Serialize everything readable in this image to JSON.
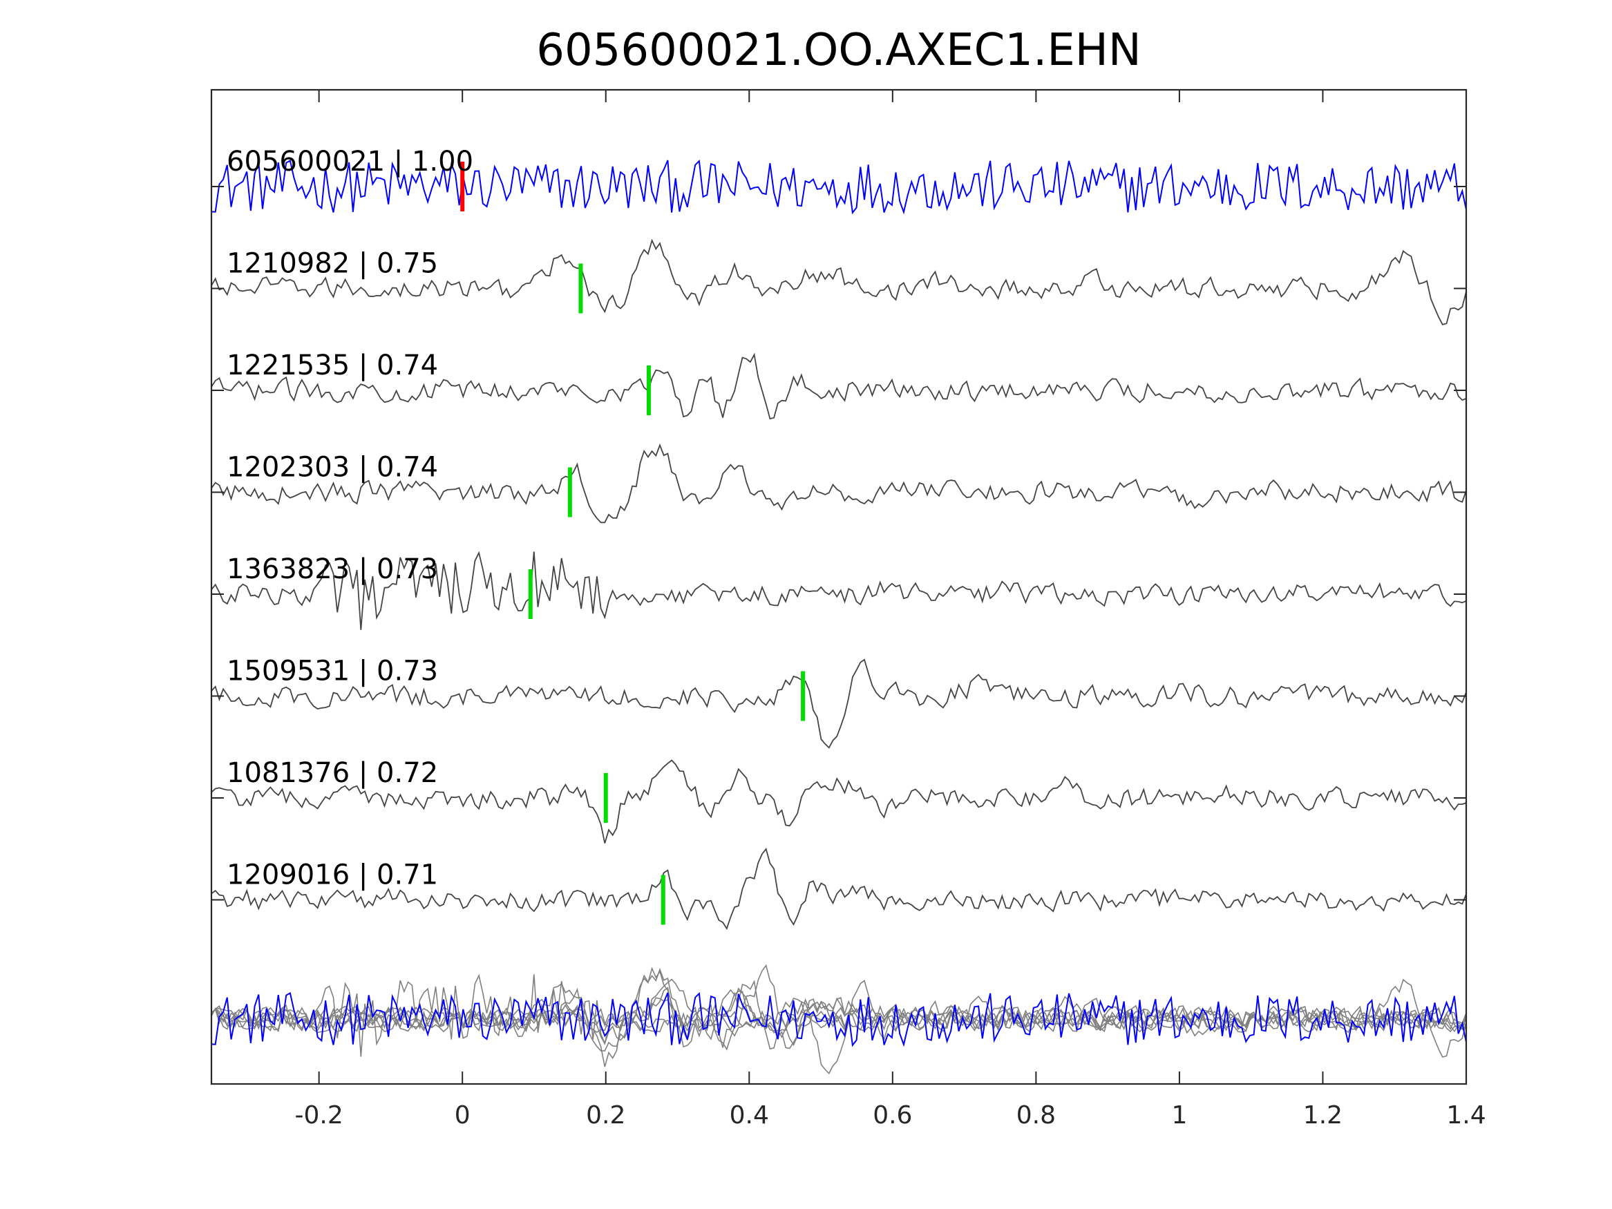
{
  "chart_data": {
    "type": "line",
    "title": "605600021.OO.AXEC1.EHN",
    "xlabel": "",
    "ylabel": "",
    "xlim": [
      -0.35,
      1.4
    ],
    "xticks": [
      {
        "value": -0.2,
        "label": "-0.2"
      },
      {
        "value": 0,
        "label": "0"
      },
      {
        "value": 0.2,
        "label": "0.2"
      },
      {
        "value": 0.4,
        "label": "0.4"
      },
      {
        "value": 0.6,
        "label": "0.6"
      },
      {
        "value": 0.8,
        "label": "0.8"
      },
      {
        "value": 1,
        "label": "1"
      },
      {
        "value": 1.2,
        "label": "1.2"
      },
      {
        "value": 1.4,
        "label": "1.4"
      }
    ],
    "grid": false,
    "legend": "none",
    "colors": {
      "template": "#0000ff",
      "match": "#444444",
      "stack": "#808080",
      "template_pick": "#ff0000",
      "match_pick": "#00dd00"
    },
    "series": [
      {
        "label": "605600021 | 1.00",
        "pick": 0.0,
        "kind": "template",
        "events": []
      },
      {
        "label": "1210982 | 0.75",
        "pick": 0.165,
        "kind": "match",
        "events": [
          [
            0.15,
            0.035,
            1.3
          ],
          [
            0.185,
            0.02,
            -0.9
          ],
          [
            0.27,
            0.03,
            1.7
          ],
          [
            0.22,
            0.02,
            -0.7
          ],
          [
            0.32,
            0.03,
            -0.4
          ],
          [
            0.38,
            0.025,
            0.8
          ],
          [
            0.41,
            0.02,
            -0.4
          ],
          [
            0.5,
            0.05,
            0.5
          ],
          [
            1.31,
            0.03,
            1.2
          ],
          [
            1.37,
            0.02,
            -1.1
          ],
          [
            0.67,
            0.02,
            0.3
          ],
          [
            0.88,
            0.02,
            0.3
          ]
        ]
      },
      {
        "label": "1221535 | 0.74",
        "pick": 0.26,
        "kind": "match",
        "events": [
          [
            0.28,
            0.018,
            0.9
          ],
          [
            0.31,
            0.018,
            -1.0
          ],
          [
            0.34,
            0.015,
            0.9
          ],
          [
            0.36,
            0.015,
            -0.9
          ],
          [
            0.4,
            0.018,
            1.6
          ],
          [
            0.43,
            0.018,
            -0.9
          ],
          [
            0.47,
            0.02,
            0.3
          ],
          [
            0.86,
            0.02,
            0.3
          ],
          [
            1.08,
            0.02,
            -0.3
          ]
        ]
      },
      {
        "label": "1202303 | 0.74",
        "pick": 0.15,
        "kind": "match",
        "events": [
          [
            0.16,
            0.025,
            1.1
          ],
          [
            0.185,
            0.02,
            -1.0
          ],
          [
            0.27,
            0.03,
            1.7
          ],
          [
            0.22,
            0.02,
            -0.7
          ],
          [
            0.32,
            0.03,
            -0.4
          ],
          [
            0.38,
            0.025,
            0.8
          ],
          [
            0.44,
            0.04,
            -0.3
          ],
          [
            1.02,
            0.03,
            -0.4
          ],
          [
            0.66,
            0.02,
            0.2
          ]
        ]
      },
      {
        "label": "1363823 | 0.73",
        "pick": 0.095,
        "kind": "match",
        "events": [
          [
            -0.1,
            0.07,
            0.0
          ],
          [
            0.76,
            0.02,
            0.3
          ],
          [
            0.58,
            0.02,
            0.2
          ]
        ]
      },
      {
        "label": "1509531 | 0.73",
        "pick": 0.475,
        "kind": "match",
        "events": [
          [
            0.465,
            0.02,
            0.9
          ],
          [
            0.51,
            0.02,
            -1.9
          ],
          [
            0.56,
            0.025,
            0.9
          ],
          [
            0.63,
            0.02,
            0.7
          ],
          [
            0.64,
            0.02,
            -0.6
          ],
          [
            0.72,
            0.03,
            0.4
          ],
          [
            0.38,
            0.02,
            -0.3
          ],
          [
            1.0,
            0.02,
            0.3
          ]
        ]
      },
      {
        "label": "1081376 | 0.72",
        "pick": 0.2,
        "kind": "match",
        "events": [
          [
            0.16,
            0.02,
            0.4
          ],
          [
            0.2,
            0.018,
            -1.6
          ],
          [
            0.29,
            0.03,
            1.1
          ],
          [
            0.35,
            0.02,
            -0.6
          ],
          [
            0.38,
            0.02,
            0.9
          ],
          [
            0.45,
            0.02,
            -0.9
          ],
          [
            0.53,
            0.03,
            0.6
          ],
          [
            0.58,
            0.025,
            -0.5
          ],
          [
            0.84,
            0.02,
            0.4
          ],
          [
            1.06,
            0.02,
            0.3
          ]
        ]
      },
      {
        "label": "1209016 | 0.71",
        "pick": 0.28,
        "kind": "match",
        "events": [
          [
            0.28,
            0.02,
            1.0
          ],
          [
            0.31,
            0.018,
            -0.9
          ],
          [
            0.37,
            0.015,
            -0.8
          ],
          [
            0.42,
            0.02,
            1.7
          ],
          [
            0.46,
            0.015,
            -0.8
          ],
          [
            0.49,
            0.02,
            0.6
          ],
          [
            0.54,
            0.02,
            0.5
          ],
          [
            0.62,
            0.02,
            -0.2
          ],
          [
            -0.09,
            0.02,
            0.3
          ]
        ]
      }
    ]
  }
}
